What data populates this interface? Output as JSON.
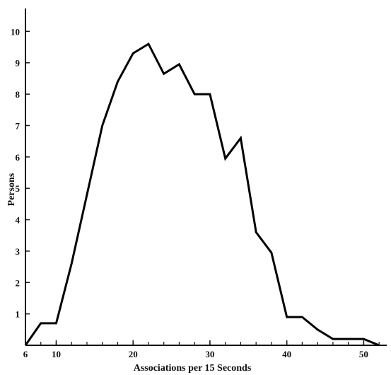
{
  "chart_data": {
    "type": "line",
    "title": "",
    "xlabel": "Associations per 15 Seconds",
    "ylabel": "Persons",
    "xlim": [
      6,
      53
    ],
    "ylim": [
      0,
      11
    ],
    "x_tick_values": [
      6,
      10,
      20,
      30,
      40,
      50
    ],
    "x_tick_labels": [
      "6",
      "10",
      "20",
      "30",
      "40",
      "50"
    ],
    "y_tick_values": [
      1,
      2,
      3,
      4,
      5,
      6,
      7,
      8,
      9,
      10
    ],
    "y_tick_labels": [
      "1",
      "2",
      "3",
      "4",
      "5",
      "6",
      "7",
      "8",
      "9",
      "10"
    ],
    "grid": false,
    "legend": "none",
    "line_color": "#000000",
    "series": [
      {
        "x": [
          6,
          8,
          10,
          12,
          14,
          16,
          18,
          20,
          22,
          24,
          26,
          28,
          30,
          32,
          34,
          36,
          38,
          40,
          42,
          44,
          46,
          48,
          50,
          52
        ],
        "y": [
          0,
          0.7,
          0.7,
          2.6,
          4.8,
          7.0,
          8.4,
          9.3,
          9.6,
          8.65,
          8.95,
          8.0,
          8.0,
          5.95,
          6.6,
          3.6,
          2.95,
          0.9,
          0.9,
          0.5,
          0.2,
          0.2,
          0.2,
          0
        ]
      }
    ]
  }
}
